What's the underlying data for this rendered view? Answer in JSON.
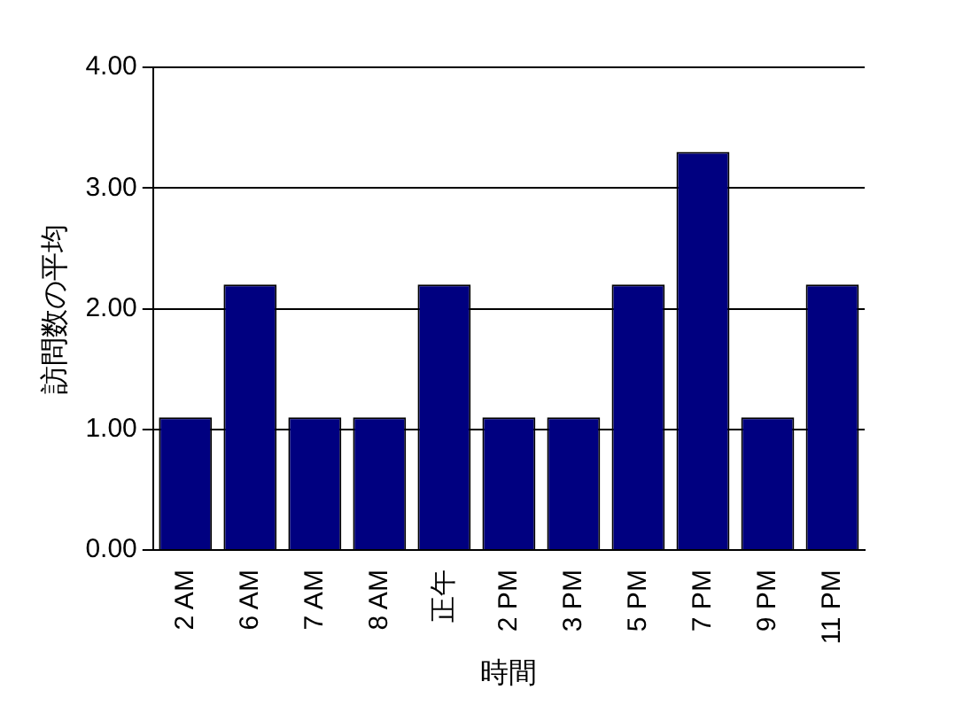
{
  "chart_data": {
    "type": "bar",
    "xlabel": "時間",
    "ylabel": "訪問数の平均",
    "categories": [
      "2 AM",
      "6 AM",
      "7 AM",
      "8 AM",
      "正午",
      "2 PM",
      "3 PM",
      "5 PM",
      "7 PM",
      "9 PM",
      "11 PM"
    ],
    "values": [
      1.1,
      2.2,
      1.1,
      1.1,
      2.2,
      1.1,
      1.1,
      2.2,
      3.3,
      1.1,
      2.2
    ],
    "color": "#000080",
    "ylim": [
      0,
      4
    ],
    "yticks": [
      {
        "value": 0,
        "label": "0.00"
      },
      {
        "value": 1,
        "label": "1.00"
      },
      {
        "value": 2,
        "label": "2.00"
      },
      {
        "value": 3,
        "label": "3.00"
      },
      {
        "value": 4,
        "label": "4.00"
      }
    ],
    "grid": "y",
    "legend": false
  }
}
